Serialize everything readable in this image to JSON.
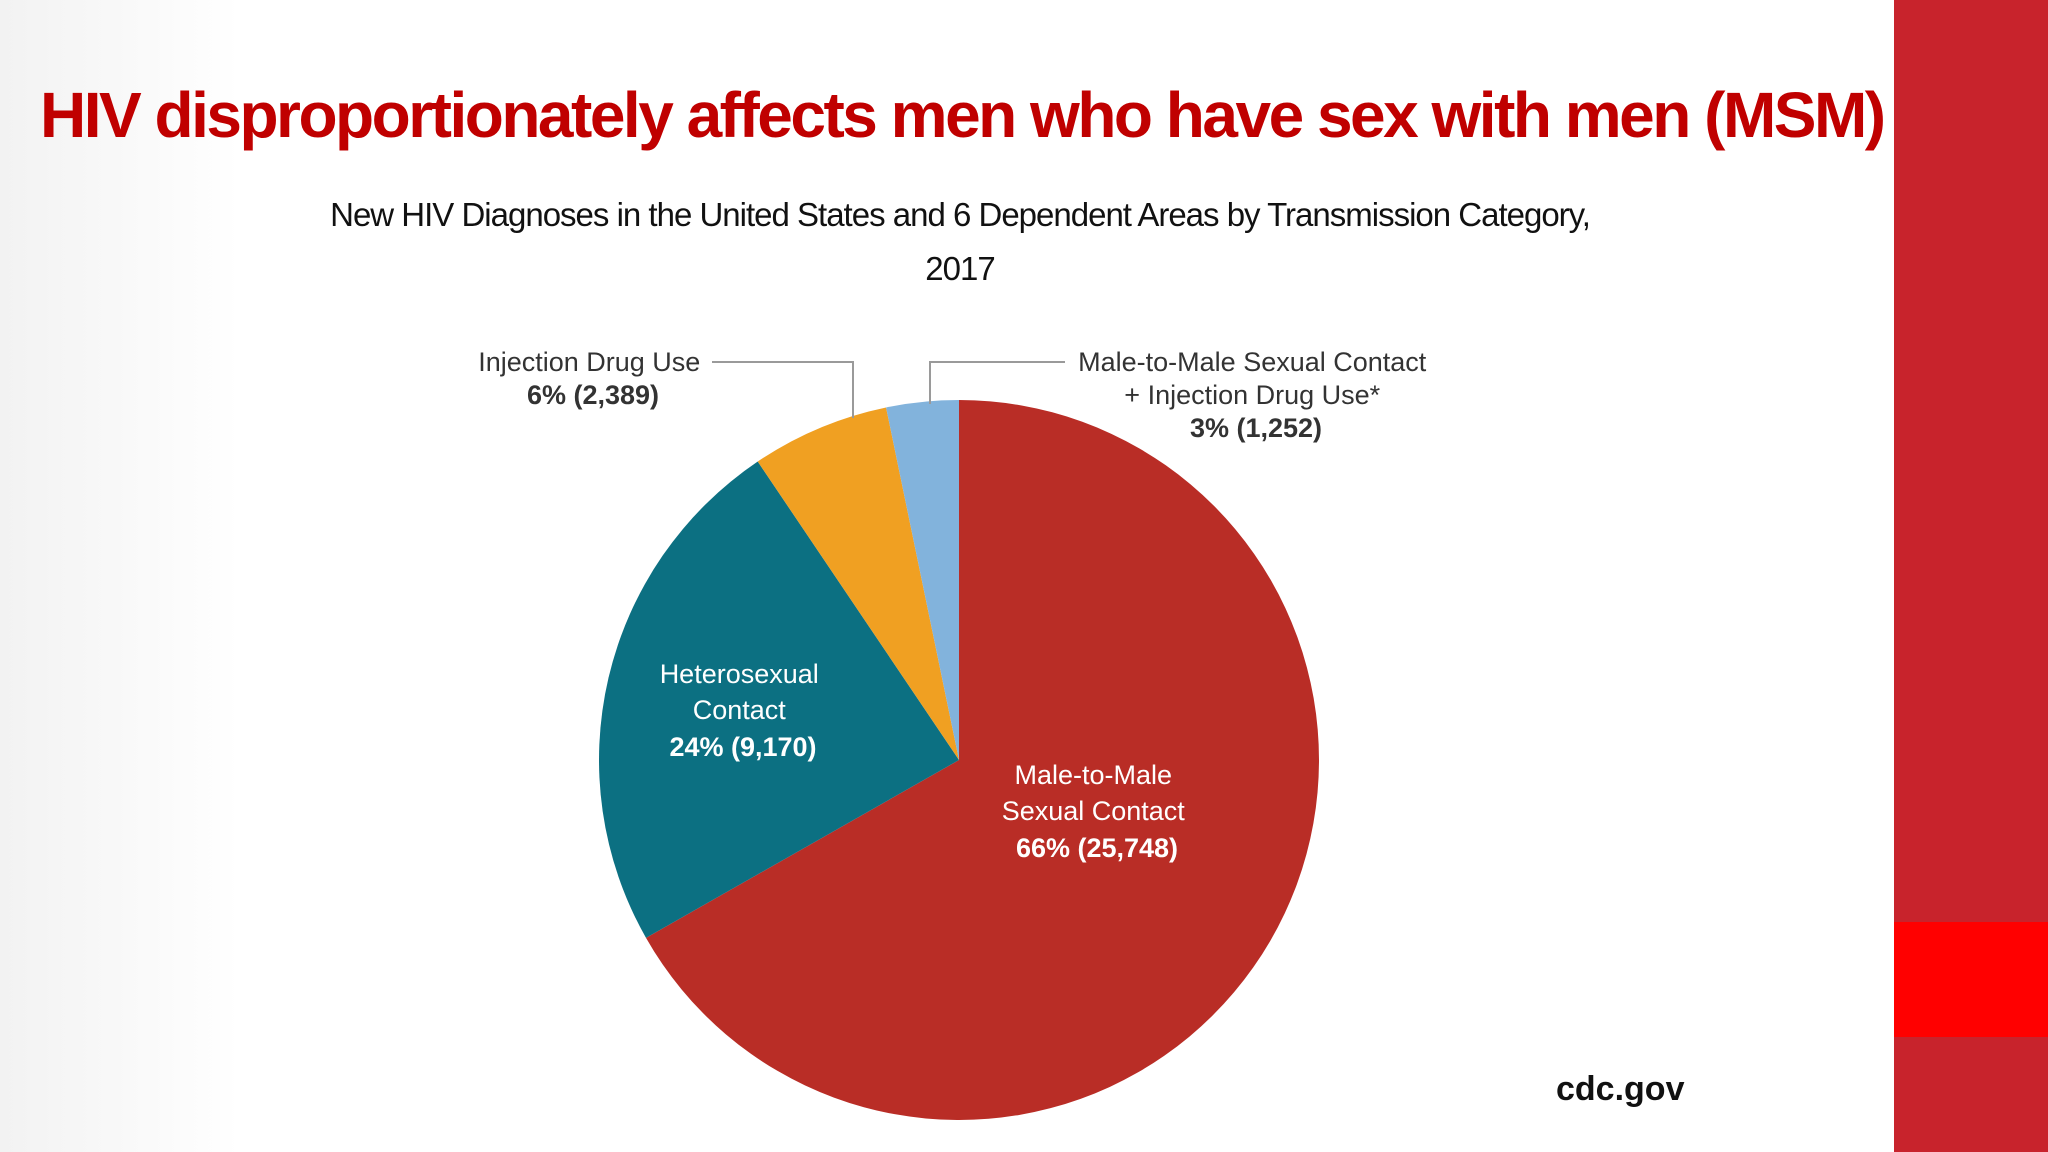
{
  "slide": {
    "title": "HIV disproportionately affects men who have sex with men (MSM)",
    "source": "cdc.gov"
  },
  "colors": {
    "title": "#c00000",
    "side_bar": "#c8232c",
    "side_accent": "#ff0000"
  },
  "chart_data": {
    "type": "pie",
    "title_line1": "New HIV Diagnoses in the United States and 6 Dependent Areas by Transmission Category,",
    "title_line2": "2017",
    "slices": [
      {
        "label_lines": [
          "Male-to-Male",
          "Sexual Contact"
        ],
        "value_label": "66% (25,748)",
        "percent": 66,
        "count": 25748,
        "color": "#b92d26"
      },
      {
        "label_lines": [
          "Heterosexual",
          "Contact"
        ],
        "value_label": "24% (9,170)",
        "percent": 24,
        "count": 9170,
        "color": "#0c7082"
      },
      {
        "label_lines": [
          "Injection Drug Use"
        ],
        "value_label": "6% (2,389)",
        "percent": 6,
        "count": 2389,
        "color": "#f0a022"
      },
      {
        "label_lines": [
          "Male-to-Male Sexual Contact",
          "+ Injection Drug Use*"
        ],
        "value_label": "3% (1,252)",
        "percent": 3,
        "count": 1252,
        "color": "#82b3dc"
      }
    ]
  }
}
